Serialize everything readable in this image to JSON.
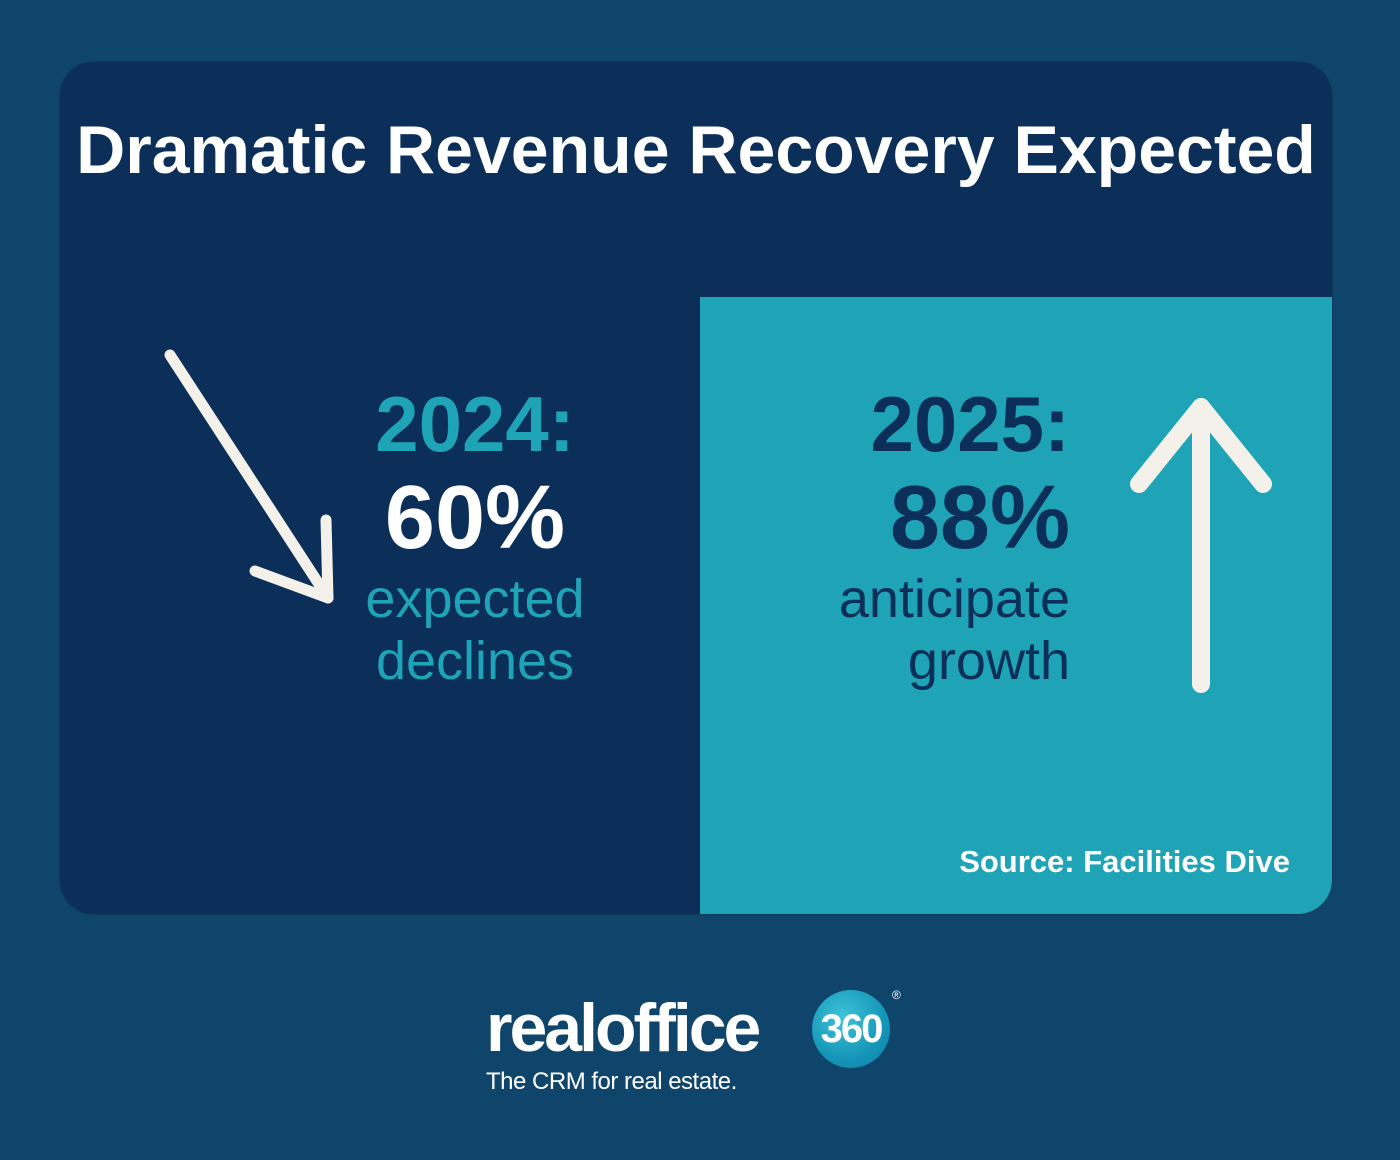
{
  "title": "Dramatic Revenue Recovery Expected",
  "left": {
    "year": "2024:",
    "percent": "60%",
    "description_line1": "expected",
    "description_line2": "declines",
    "arrow_icon": "arrow-down-right-icon"
  },
  "right": {
    "year": "2025:",
    "percent": "88%",
    "description_line1": "anticipate",
    "description_line2": "growth",
    "arrow_icon": "arrow-up-icon"
  },
  "source": "Source: Facilities Dive",
  "logo": {
    "wordmark": "realoffice",
    "badge": "360",
    "registered": "®",
    "tagline": "The CRM for real estate."
  },
  "colors": {
    "background": "#0f456a",
    "card": "#0b2f59",
    "accent": "#1ea4b6",
    "text": "#ffffff"
  }
}
